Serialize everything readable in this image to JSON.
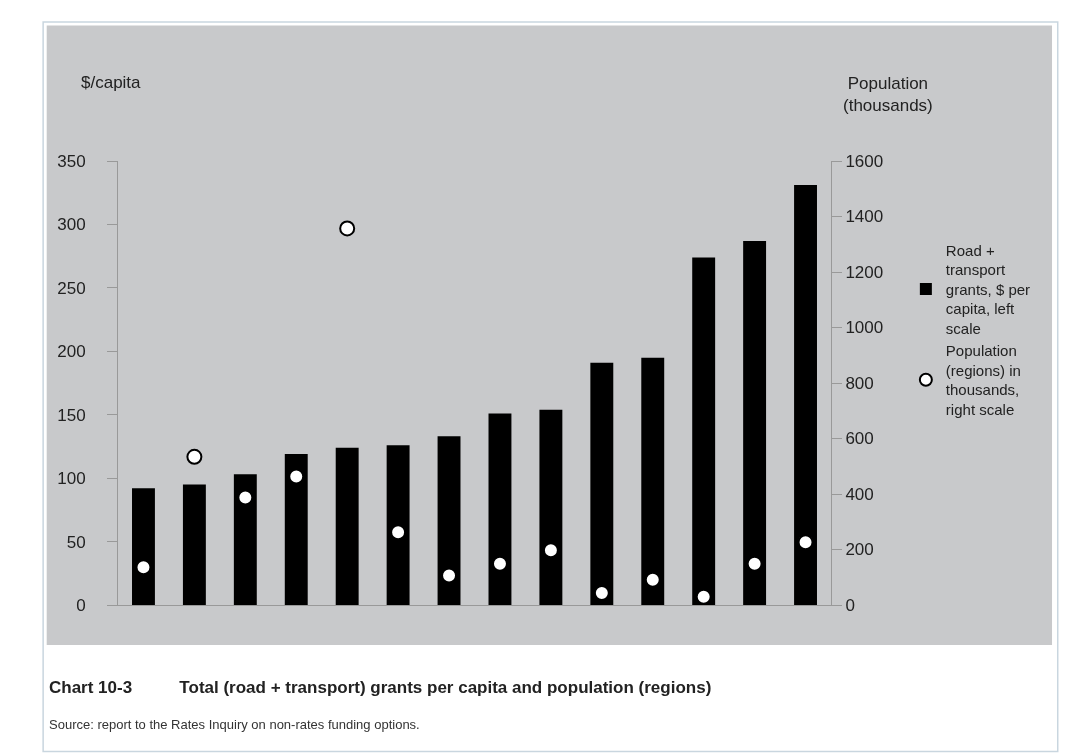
{
  "chart_data": {
    "type": "bar",
    "title": "Chart 10-3      Total (road + transport) grants per capita and population (regions)",
    "ylabel": "$/capita",
    "y2label": "Population (thousands)",
    "annotations": [
      "Source: report to the Rates Inquiry on non-rates funding options."
    ],
    "categories": [
      null,
      null,
      null,
      null,
      null,
      null,
      null,
      null,
      null,
      null,
      null,
      null,
      null,
      null
    ],
    "series": [
      {
        "name": "Road + transport grants, $ per capita, left scale",
        "color": "#000000",
        "values": [
          92,
          95,
          103,
          119,
          124,
          126,
          133,
          151,
          154,
          191,
          195,
          274,
          287,
          331
        ]
      },
      {
        "name": "Population (regions) in thousands, right scale",
        "type": "scatter",
        "axis": "y2",
        "color": "#ffffff",
        "marker": "circle",
        "values": [
          136,
          534,
          387,
          463,
          1357,
          262,
          106,
          149,
          197,
          43,
          91,
          30,
          149,
          226
        ]
      }
    ],
    "ylim": [
      0,
      350
    ],
    "yticks": [
      0,
      50,
      100,
      150,
      200,
      250,
      300,
      350
    ],
    "y2lim": [
      0,
      1600
    ],
    "y2ticks": [
      0,
      200,
      400,
      600,
      800,
      1000,
      1200,
      1400,
      1600
    ],
    "tick_labels": "y",
    "grid": false,
    "legend": "right"
  }
}
